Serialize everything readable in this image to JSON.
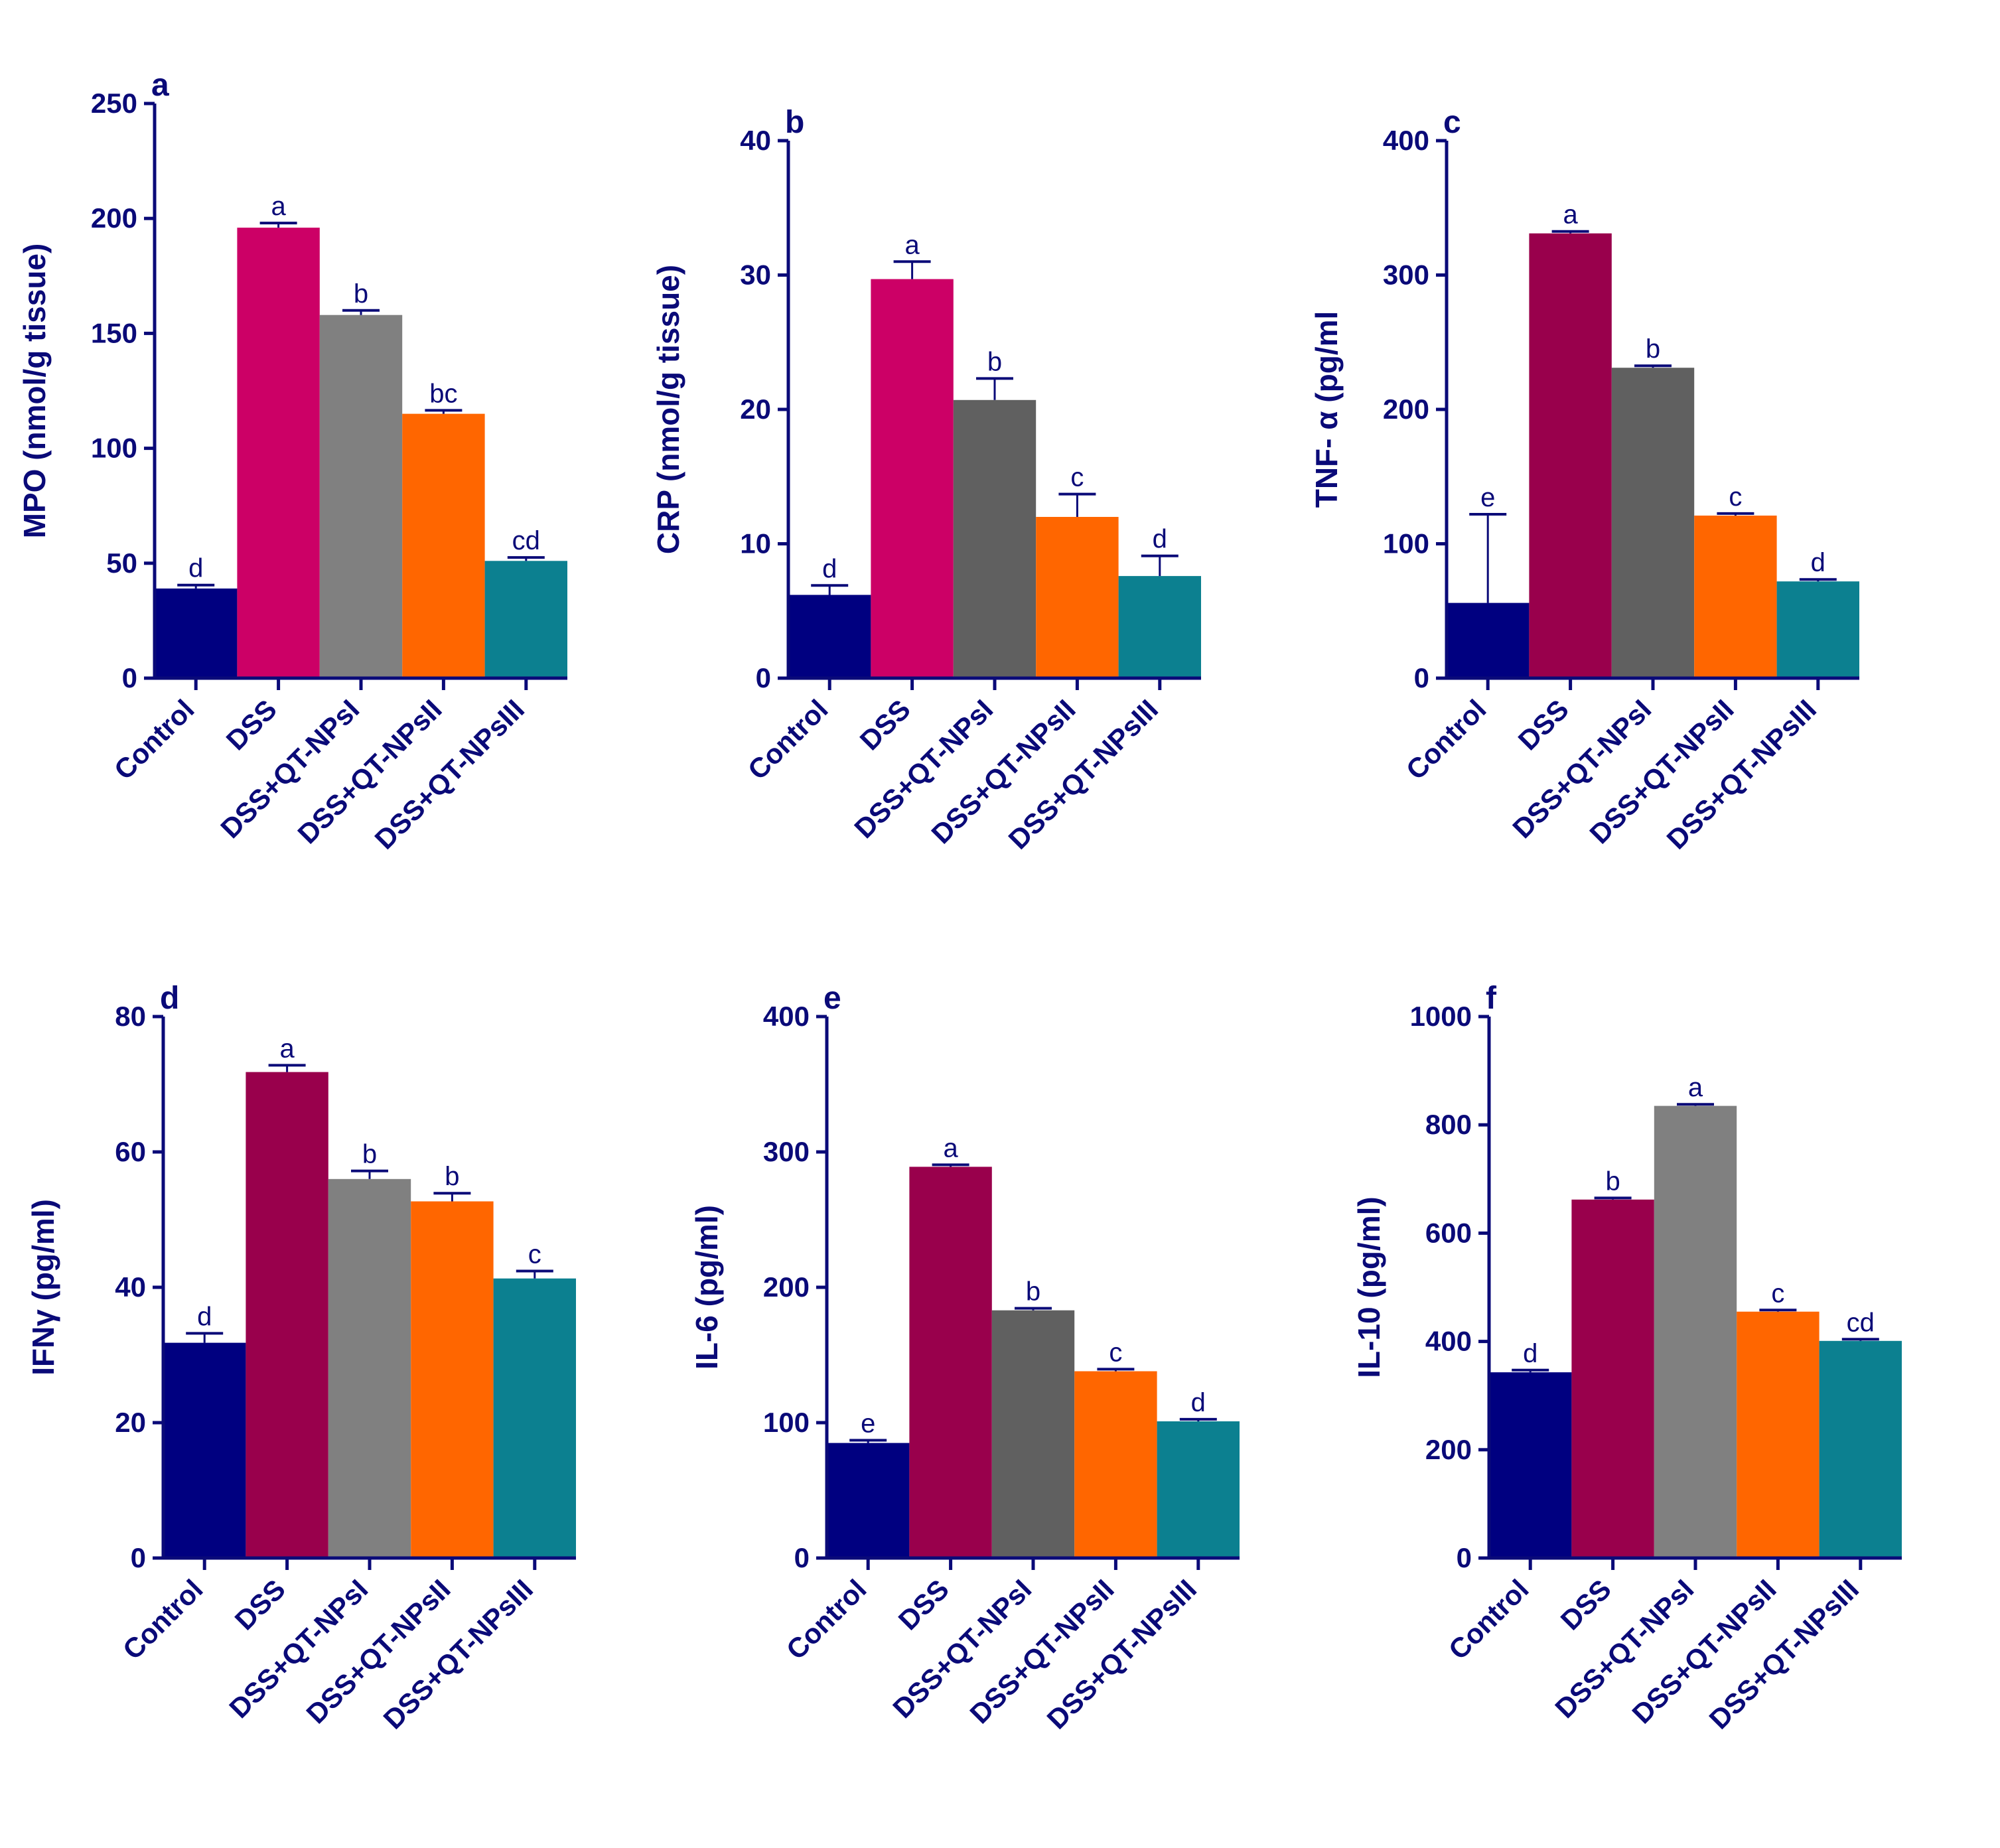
{
  "figure": {
    "axis_color": "#0a0a78"
  },
  "chart_data": [
    {
      "type": "bar",
      "panel": "a",
      "title": "",
      "xlabel": "",
      "ylabel": "MPO (nmol/g tissue)",
      "ylim": [
        0,
        250
      ],
      "yticks": [
        0,
        50,
        100,
        150,
        200,
        250
      ],
      "grid": false,
      "categories": [
        "Control",
        "DSS",
        "DSS+QT-NPsI",
        "DSS+QT-NPsII",
        "DSS+QT-NPsIII"
      ],
      "values": [
        39,
        196,
        158,
        115,
        51
      ],
      "errors": [
        1.5,
        2,
        2,
        1.5,
        1.5
      ],
      "letters": [
        "d",
        "a",
        "b",
        "bc",
        "cd"
      ],
      "colors": [
        "#000080",
        "#cc0066",
        "#808080",
        "#ff6600",
        "#0c8090"
      ]
    },
    {
      "type": "bar",
      "panel": "b",
      "title": "",
      "xlabel": "",
      "ylabel": "CRP (nmol/g tissue)",
      "ylim": [
        0,
        40
      ],
      "yticks": [
        0,
        10,
        20,
        30,
        40
      ],
      "grid": false,
      "categories": [
        "Control",
        "DSS",
        "DSS+QT-NPsI",
        "DSS+QT-NPsII",
        "DSS+QT-NPsIII"
      ],
      "values": [
        6.2,
        29.7,
        20.7,
        12,
        7.6
      ],
      "errors": [
        0.7,
        1.3,
        1.6,
        1.7,
        1.5
      ],
      "letters": [
        "d",
        "a",
        "b",
        "c",
        "d"
      ],
      "colors": [
        "#000080",
        "#cc0066",
        "#606060",
        "#ff6600",
        "#0c8090"
      ]
    },
    {
      "type": "bar",
      "panel": "c",
      "title": "",
      "xlabel": "",
      "ylabel": "TNF- α (pg/ml",
      "ylim": [
        0,
        400
      ],
      "yticks": [
        0,
        100,
        200,
        300,
        400
      ],
      "grid": false,
      "categories": [
        "Control",
        "DSS",
        "DSS+QT-NPsI",
        "DSS+QT-NPsII",
        "DSS+QT-NPsIII"
      ],
      "values": [
        56,
        331,
        231,
        121,
        72
      ],
      "errors": [
        66,
        1.5,
        1.5,
        1.5,
        1.5
      ],
      "letters": [
        "e",
        "a",
        "b",
        "c",
        "d"
      ],
      "colors": [
        "#000080",
        "#99004c",
        "#606060",
        "#ff6600",
        "#0c8090"
      ]
    },
    {
      "type": "bar",
      "panel": "d",
      "title": "",
      "xlabel": "",
      "ylabel": "IFNγ (pg/ml)",
      "ylim": [
        0,
        80
      ],
      "yticks": [
        0,
        20,
        40,
        60,
        80
      ],
      "grid": false,
      "categories": [
        "Control",
        "DSS",
        "DSS+QT-NPsI",
        "DSS+QT-NPsII",
        "DSS+QT-NPsIII"
      ],
      "values": [
        31.8,
        71.8,
        56,
        52.7,
        41.3
      ],
      "errors": [
        1.4,
        1,
        1.2,
        1.2,
        1.1
      ],
      "letters": [
        "d",
        "a",
        "b",
        "b",
        "c"
      ],
      "colors": [
        "#000080",
        "#99004c",
        "#808080",
        "#ff6600",
        "#0c8090"
      ]
    },
    {
      "type": "bar",
      "panel": "e",
      "title": "",
      "xlabel": "",
      "ylabel": "IL-6 (pg/ml)",
      "ylim": [
        0,
        400
      ],
      "yticks": [
        0,
        100,
        200,
        300,
        400
      ],
      "grid": false,
      "categories": [
        "Control",
        "DSS",
        "DSS+QT-NPsI",
        "DSS+QT-NPsII",
        "DSS+QT-NPsIII"
      ],
      "values": [
        85,
        289,
        183,
        138,
        101
      ],
      "errors": [
        2,
        1.5,
        1.5,
        1.5,
        1.5
      ],
      "letters": [
        "e",
        "a",
        "b",
        "c",
        "d"
      ],
      "colors": [
        "#000080",
        "#99004c",
        "#606060",
        "#ff6600",
        "#0c8090"
      ]
    },
    {
      "type": "bar",
      "panel": "f",
      "title": "",
      "xlabel": "",
      "ylabel": "IL-10 (pg/ml)",
      "ylim": [
        0,
        1000
      ],
      "yticks": [
        0,
        200,
        400,
        600,
        800,
        1000
      ],
      "grid": false,
      "categories": [
        "Control",
        "DSS",
        "DSS+QT-NPsI",
        "DSS+QT-NPsII",
        "DSS+QT-NPsIII"
      ],
      "values": [
        343,
        662,
        835,
        455,
        401
      ],
      "errors": [
        4,
        3,
        3,
        3,
        3
      ],
      "letters": [
        "d",
        "b",
        "a",
        "c",
        "cd"
      ],
      "colors": [
        "#000080",
        "#99004c",
        "#808080",
        "#ff6600",
        "#0c8090"
      ]
    }
  ]
}
